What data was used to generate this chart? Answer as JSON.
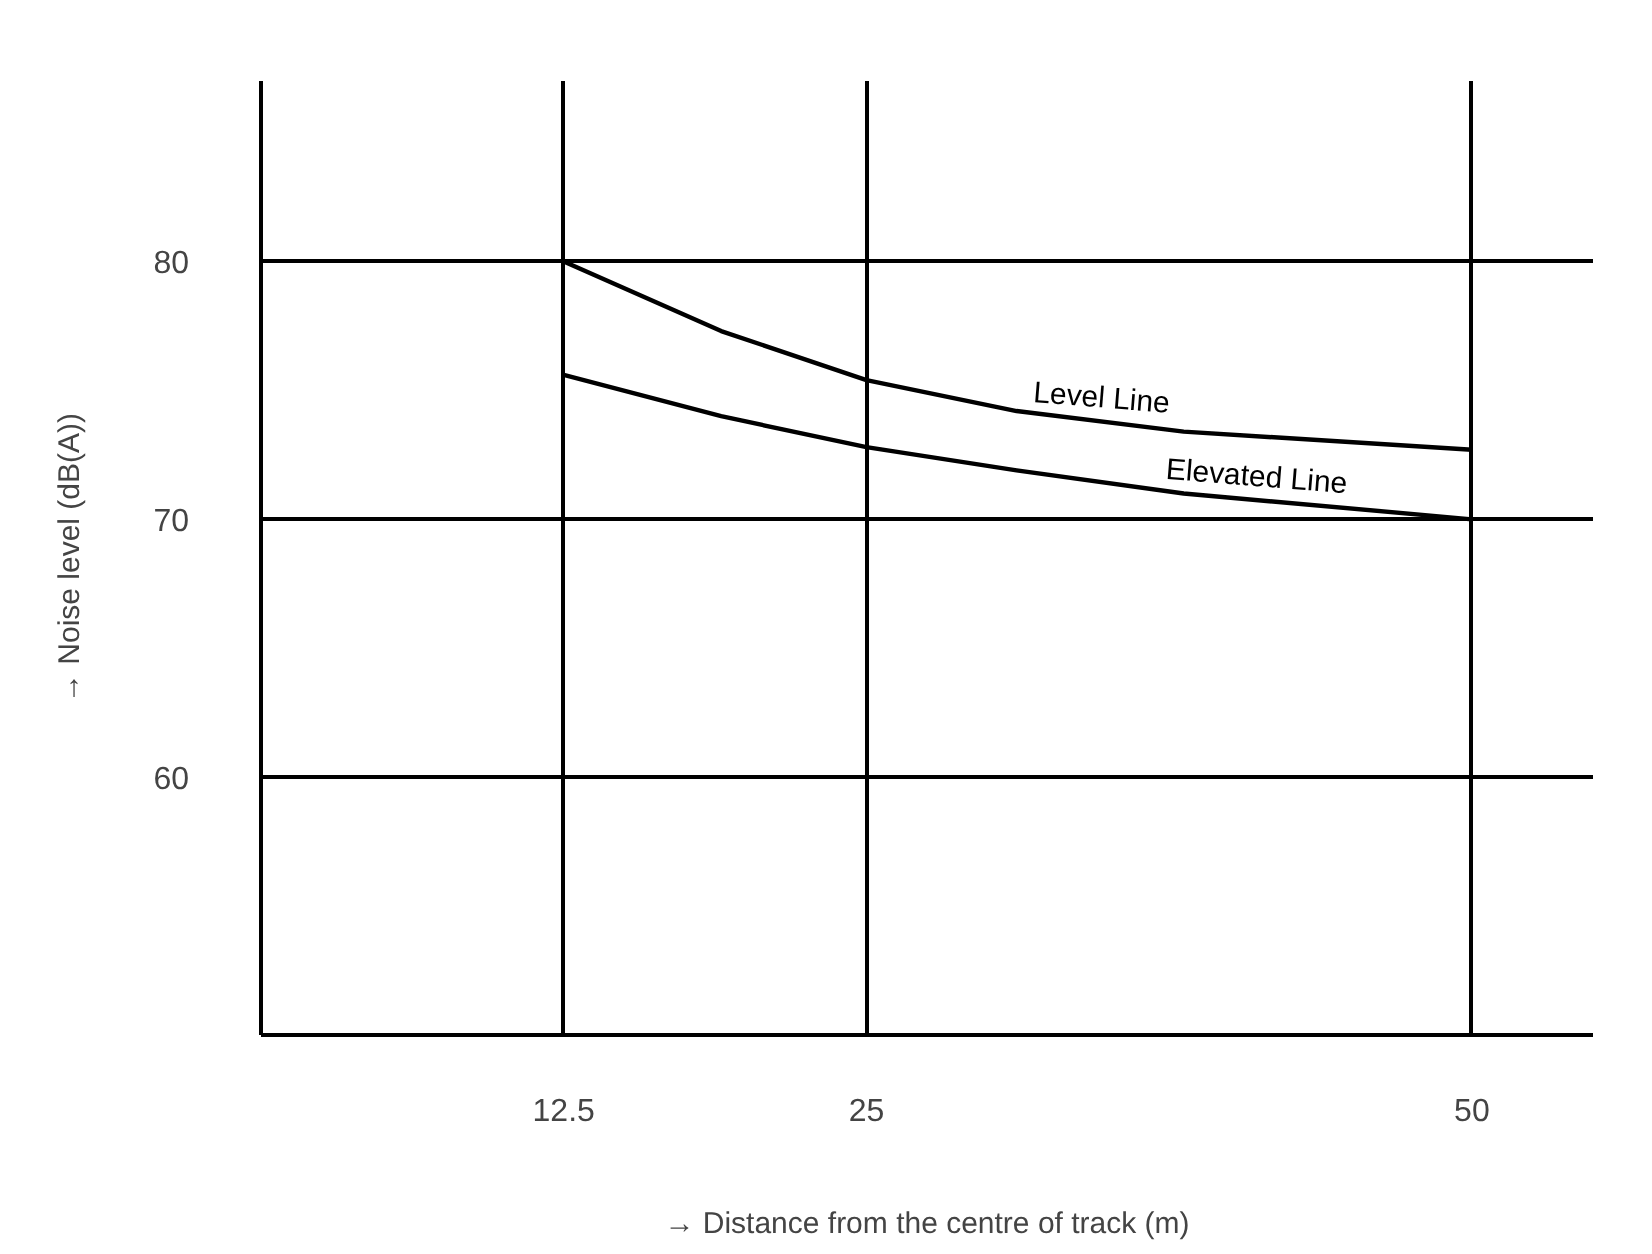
{
  "chart_data": {
    "type": "line",
    "xlabel": "→ Distance from the centre of track (m)",
    "ylabel": "→ Noise level (dB(A))",
    "series": [
      {
        "name": "Level Line",
        "color": "#000000",
        "x": [
          12.5,
          19,
          25,
          31.2,
          38.1,
          50
        ],
        "values": [
          80,
          77.3,
          75.4,
          74.2,
          73.4,
          72.7
        ]
      },
      {
        "name": "Elevated Line",
        "color": "#000000",
        "x": [
          12.5,
          19,
          25,
          31.2,
          38.1,
          50
        ],
        "values": [
          75.6,
          74.0,
          72.8,
          71.9,
          71.0,
          70
        ]
      }
    ],
    "xlim": [
      0,
      55
    ],
    "ylim": [
      50,
      87
    ],
    "xticks": [
      12.5,
      25,
      50
    ],
    "yticks": [
      60,
      70,
      80
    ],
    "grid": true,
    "marker": "none",
    "line_style": "solid"
  }
}
